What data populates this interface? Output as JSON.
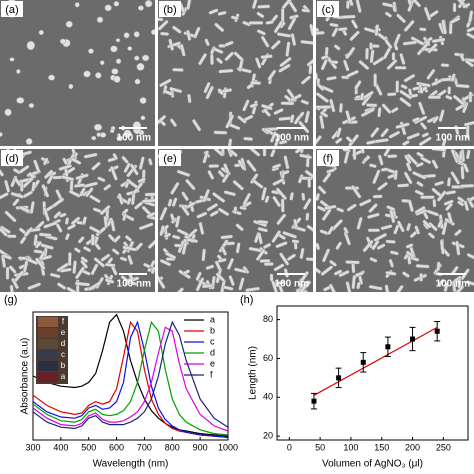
{
  "panels": [
    {
      "label": "(a)",
      "scale_bar": "100 nm"
    },
    {
      "label": "(b)",
      "scale_bar": "100 nm"
    },
    {
      "label": "(c)",
      "scale_bar": "100 nm"
    },
    {
      "label": "(d)",
      "scale_bar": "100 nm"
    },
    {
      "label": "(e)",
      "scale_bar": "100 nm"
    },
    {
      "label": "(f)",
      "scale_bar": "100 nm"
    }
  ],
  "chart_data": [
    {
      "type": "line",
      "panel_label": "(g)",
      "x_label": "Wavelength  (nm)",
      "y_label": "Absorbance (a.u)",
      "inset_labels": [
        "f",
        "e",
        "d",
        "c",
        "b",
        "a"
      ],
      "x": [
        300,
        350,
        400,
        450,
        475,
        500,
        525,
        550,
        575,
        600,
        625,
        650,
        675,
        700,
        725,
        750,
        775,
        800,
        825,
        850,
        900,
        950,
        1000
      ],
      "xlim": [
        300,
        1000
      ],
      "xticks": [
        300,
        400,
        500,
        600,
        700,
        800,
        900,
        1000
      ],
      "ylim": [
        0,
        1
      ],
      "series": [
        {
          "name": "a",
          "color": "#000000",
          "values": [
            0.5,
            0.45,
            0.42,
            0.41,
            0.42,
            0.45,
            0.52,
            0.7,
            0.92,
            0.98,
            0.85,
            0.62,
            0.45,
            0.32,
            0.23,
            0.17,
            0.13,
            0.1,
            0.08,
            0.07,
            0.05,
            0.04,
            0.03
          ]
        },
        {
          "name": "b",
          "color": "#e00000",
          "values": [
            0.35,
            0.27,
            0.22,
            0.2,
            0.21,
            0.27,
            0.3,
            0.28,
            0.3,
            0.4,
            0.65,
            0.92,
            0.85,
            0.55,
            0.32,
            0.2,
            0.13,
            0.09,
            0.07,
            0.06,
            0.04,
            0.03,
            0.02
          ]
        },
        {
          "name": "c",
          "color": "#1010e0",
          "values": [
            0.3,
            0.22,
            0.18,
            0.17,
            0.19,
            0.25,
            0.27,
            0.24,
            0.25,
            0.3,
            0.45,
            0.8,
            0.92,
            0.7,
            0.42,
            0.25,
            0.16,
            0.11,
            0.08,
            0.06,
            0.04,
            0.03,
            0.02
          ]
        },
        {
          "name": "d",
          "color": "#00a000",
          "values": [
            0.28,
            0.2,
            0.15,
            0.14,
            0.16,
            0.22,
            0.24,
            0.2,
            0.19,
            0.2,
            0.23,
            0.3,
            0.45,
            0.7,
            0.92,
            0.85,
            0.55,
            0.32,
            0.2,
            0.14,
            0.08,
            0.05,
            0.04
          ]
        },
        {
          "name": "e",
          "color": "#e000e0",
          "values": [
            0.25,
            0.17,
            0.12,
            0.11,
            0.13,
            0.19,
            0.21,
            0.16,
            0.14,
            0.14,
            0.15,
            0.18,
            0.22,
            0.3,
            0.45,
            0.68,
            0.88,
            0.85,
            0.6,
            0.4,
            0.2,
            0.11,
            0.07
          ]
        },
        {
          "name": "f",
          "color": "#1a237e",
          "values": [
            0.22,
            0.14,
            0.1,
            0.09,
            0.11,
            0.17,
            0.19,
            0.14,
            0.12,
            0.12,
            0.12,
            0.14,
            0.17,
            0.22,
            0.32,
            0.5,
            0.75,
            0.92,
            0.82,
            0.62,
            0.32,
            0.17,
            0.1
          ]
        }
      ]
    },
    {
      "type": "scatter",
      "panel_label": "(h)",
      "x_label": "Volumen of AgNO₃ (μl)",
      "y_label": "Length (nm)",
      "x": [
        40,
        80,
        120,
        160,
        200,
        240
      ],
      "values": [
        38,
        50,
        58,
        66,
        70,
        74
      ],
      "errors": [
        4,
        5,
        5,
        5,
        6,
        5
      ],
      "color": "#000000",
      "fit": {
        "x": [
          40,
          240
        ],
        "values": [
          41,
          76
        ],
        "color": "#e00000"
      },
      "xlim": [
        -20,
        290
      ],
      "xticks": [
        0,
        50,
        100,
        150,
        200,
        250
      ],
      "ylim": [
        18,
        87
      ],
      "yticks": [
        20,
        40,
        60,
        80
      ]
    }
  ]
}
